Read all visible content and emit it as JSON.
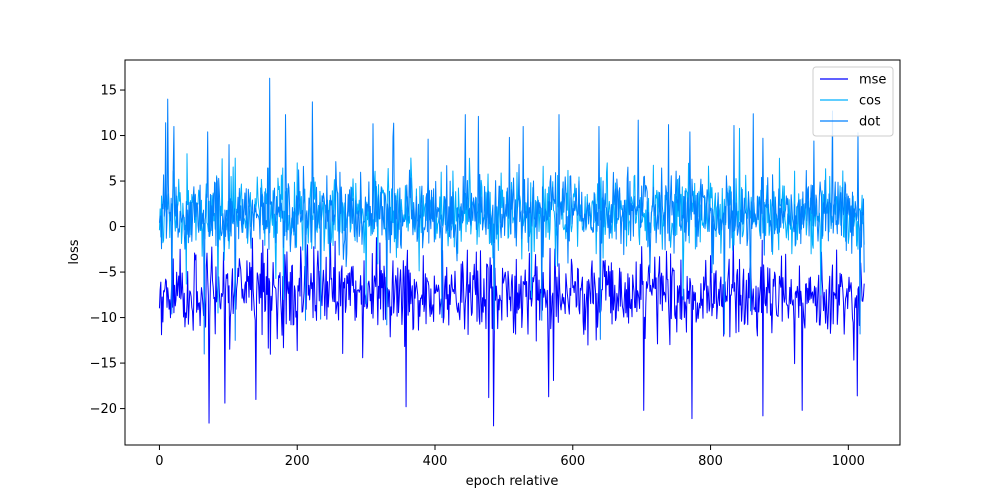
{
  "chart_data": {
    "type": "line",
    "title": "",
    "xlabel": "epoch relative",
    "ylabel": "loss",
    "xlim": [
      -50,
      1075
    ],
    "ylim": [
      -24,
      18.3
    ],
    "x_ticks": [
      0,
      200,
      400,
      600,
      800,
      1000
    ],
    "y_ticks": [
      -20,
      -15,
      -10,
      -5,
      0,
      5,
      10,
      15
    ],
    "grid": false,
    "legend_position": "top-right",
    "n_points": 1024,
    "series": [
      {
        "name": "mse",
        "color": "#0000ff",
        "center": -7.5,
        "typical_range": [
          -12,
          -3
        ],
        "extreme_lows": [
          [
            72,
            -21.6
          ],
          [
            95,
            -19.4
          ],
          [
            140,
            -19.0
          ],
          [
            358,
            -19.8
          ],
          [
            478,
            -18.8
          ],
          [
            485,
            -21.9
          ],
          [
            565,
            -18.7
          ],
          [
            703,
            -20.2
          ],
          [
            773,
            -21.1
          ],
          [
            876,
            -20.8
          ],
          [
            933,
            -20.2
          ],
          [
            1013,
            -18.6
          ]
        ],
        "peaks": [
          [
            30,
            -2.5
          ],
          [
            150,
            -1.5
          ],
          [
            215,
            -2.0
          ],
          [
            320,
            -1.8
          ],
          [
            700,
            -2.2
          ],
          [
            875,
            -1.5
          ]
        ]
      },
      {
        "name": "cos",
        "color": "#00b0ff",
        "center": 1.5,
        "typical_range": [
          -3,
          5
        ],
        "extreme_lows": [
          [
            85,
            -9.5
          ],
          [
            180,
            -8.0
          ],
          [
            300,
            -8.5
          ],
          [
            540,
            -7.8
          ],
          [
            760,
            -8.0
          ],
          [
            960,
            -7.5
          ]
        ],
        "peaks": [
          [
            40,
            8.0
          ],
          [
            200,
            7.0
          ],
          [
            450,
            7.5
          ],
          [
            650,
            7.0
          ],
          [
            900,
            7.5
          ]
        ]
      },
      {
        "name": "dot",
        "color": "#0080ff",
        "center": 1.5,
        "typical_range": [
          -3,
          5
        ],
        "extreme_lows": [
          [
            18,
            -9.6
          ],
          [
            65,
            -14.0
          ],
          [
            110,
            -12.5
          ],
          [
            212,
            -10.3
          ],
          [
            330,
            -10.8
          ],
          [
            410,
            -10.0
          ],
          [
            555,
            -10.3
          ],
          [
            640,
            -12.4
          ],
          [
            820,
            -11.8
          ],
          [
            1017,
            -11.8
          ]
        ],
        "peaks": [
          [
            9,
            11.4
          ],
          [
            12,
            14.0
          ],
          [
            21,
            11.0
          ],
          [
            70,
            10.4
          ],
          [
            101,
            9.0
          ],
          [
            160,
            16.3
          ],
          [
            183,
            12.3
          ],
          [
            222,
            13.7
          ],
          [
            310,
            11.3
          ],
          [
            339,
            9.8
          ],
          [
            390,
            9.6
          ],
          [
            444,
            12.3
          ],
          [
            463,
            12.1
          ],
          [
            508,
            9.8
          ],
          [
            528,
            11.0
          ],
          [
            580,
            12.3
          ],
          [
            638,
            11.0
          ],
          [
            695,
            11.7
          ],
          [
            739,
            11.2
          ],
          [
            770,
            10.4
          ],
          [
            834,
            11.1
          ],
          [
            862,
            12.4
          ],
          [
            876,
            9.7
          ],
          [
            950,
            9.4
          ],
          [
            977,
            12.7
          ],
          [
            1014,
            10.3
          ]
        ]
      }
    ]
  }
}
